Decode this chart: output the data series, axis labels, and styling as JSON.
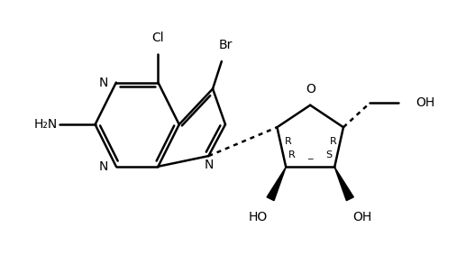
{
  "background_color": "#ffffff",
  "line_color": "#000000",
  "line_width": 1.8,
  "font_size": 10,
  "figsize": [
    5.27,
    2.93
  ],
  "dpi": 100,
  "xlim": [
    0,
    10.54
  ],
  "ylim": [
    0,
    5.86
  ]
}
